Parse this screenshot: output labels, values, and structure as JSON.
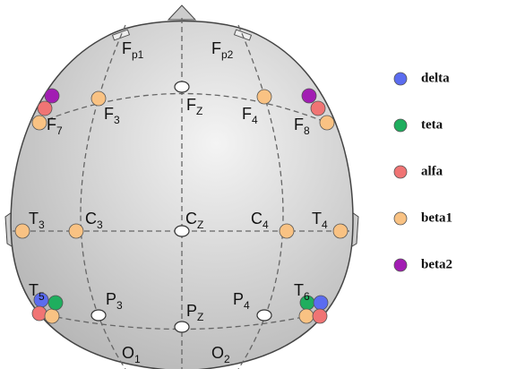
{
  "electrodes": [
    {
      "letter": "F",
      "index": "p1"
    },
    {
      "letter": "F",
      "index": "p2"
    },
    {
      "letter": "F",
      "index": "7"
    },
    {
      "letter": "F",
      "index": "3"
    },
    {
      "letter": "F",
      "index": "Z"
    },
    {
      "letter": "F",
      "index": "4"
    },
    {
      "letter": "F",
      "index": "8"
    },
    {
      "letter": "T",
      "index": "3"
    },
    {
      "letter": "C",
      "index": "3"
    },
    {
      "letter": "C",
      "index": "Z"
    },
    {
      "letter": "C",
      "index": "4"
    },
    {
      "letter": "T",
      "index": "4"
    },
    {
      "letter": "T",
      "index": "5"
    },
    {
      "letter": "P",
      "index": "3"
    },
    {
      "letter": "P",
      "index": "Z"
    },
    {
      "letter": "P",
      "index": "4"
    },
    {
      "letter": "T",
      "index": "6"
    },
    {
      "letter": "O",
      "index": "1"
    },
    {
      "letter": "O",
      "index": "2"
    }
  ],
  "legend": [
    {
      "label": "delta",
      "color": "#5b6cf0"
    },
    {
      "label": "teta",
      "color": "#1fae5e"
    },
    {
      "label": "alfa",
      "color": "#f07474"
    },
    {
      "label": "beta1",
      "color": "#f9c283"
    },
    {
      "label": "beta2",
      "color": "#a21db3"
    }
  ]
}
